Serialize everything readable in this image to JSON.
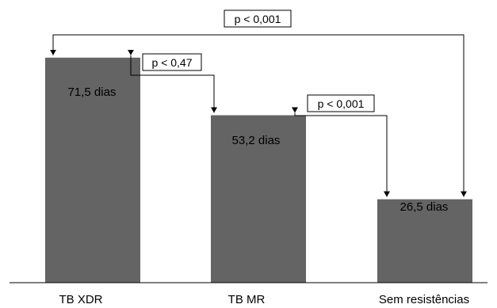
{
  "chart_data": {
    "type": "bar",
    "categories": [
      "TB XDR",
      "TB MR",
      "Sem resistências"
    ],
    "values": [
      71.5,
      53.2,
      26.5
    ],
    "value_labels": [
      "71,5 dias",
      "53,2 dias",
      "26,5 dias"
    ],
    "unit": "dias",
    "bar_color": "#646464",
    "ylim": [
      0,
      80
    ],
    "grid": false,
    "legend": "none",
    "title": "",
    "xlabel": "",
    "ylabel": "",
    "annotations": [
      {
        "from": "TB XDR",
        "to": "Sem resistências",
        "text": "p < 0,001"
      },
      {
        "from": "TB XDR",
        "to": "TB MR",
        "text": "p < 0,47"
      },
      {
        "from": "TB MR",
        "to": "Sem resistências",
        "text": "p < 0,001"
      }
    ]
  }
}
